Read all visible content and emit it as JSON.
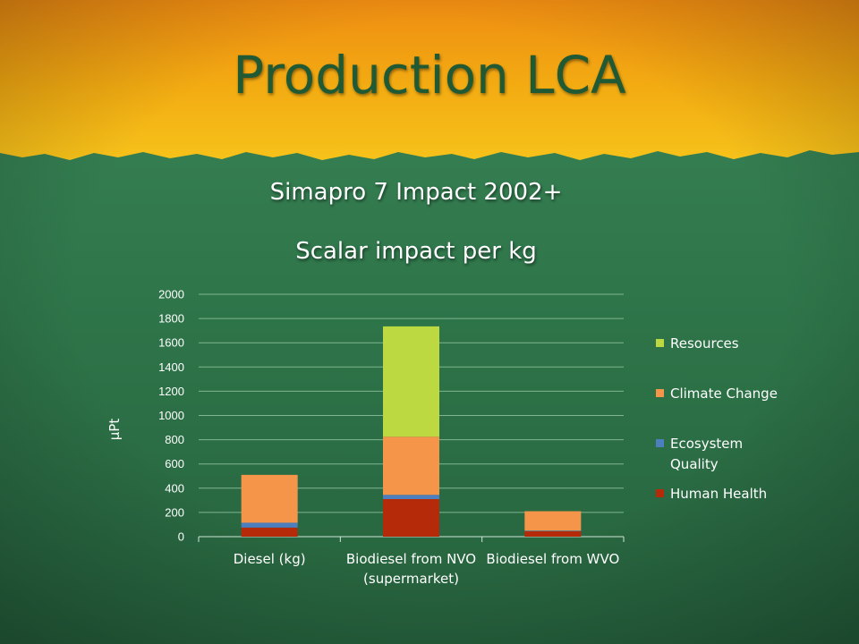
{
  "slide": {
    "title": "Production LCA",
    "subtitle_line1": "Simapro 7 Impact 2002+",
    "subtitle_line2": "Scalar impact per kg"
  },
  "colors": {
    "background_top": "#f2a614",
    "background_bottom": "#2c6e45",
    "title_text": "#1f5a35",
    "gridline": "#7fb590",
    "axis": "#cfe6d6"
  },
  "chart_data": {
    "type": "bar",
    "stacked": true,
    "categories": [
      "Diesel (kg)",
      "Biodiesel from NVO (supermarket)",
      "Biodiesel from WVO"
    ],
    "category_lines": [
      [
        "Diesel (kg)"
      ],
      [
        "Biodiesel from NVO",
        "(supermarket)"
      ],
      [
        "Biodiesel from WVO"
      ]
    ],
    "series": [
      {
        "name": "Human Health",
        "color": "#b52a08",
        "values": [
          75,
          310,
          45
        ]
      },
      {
        "name": "Ecosystem Quality",
        "color": "#4d7fbf",
        "values": [
          40,
          35,
          5
        ]
      },
      {
        "name": "Climate Change",
        "color": "#f5954a",
        "values": [
          395,
          480,
          160
        ]
      },
      {
        "name": "Resources",
        "color": "#bcd942",
        "values": [
          0,
          910,
          0
        ]
      }
    ],
    "legend_order": [
      "Resources",
      "Climate Change",
      "Ecosystem Quality",
      "Human Health"
    ],
    "legend_lines": {
      "Resources": [
        "Resources"
      ],
      "Climate Change": [
        "Climate Change"
      ],
      "Ecosystem Quality": [
        "Ecosystem",
        "Quality"
      ],
      "Human Health": [
        "Human Health"
      ]
    },
    "ylabel": "µPt",
    "ylim": [
      0,
      2000
    ],
    "yticks": [
      0,
      200,
      400,
      600,
      800,
      1000,
      1200,
      1400,
      1600,
      1800,
      2000
    ],
    "grid": true,
    "legend_position": "right"
  }
}
